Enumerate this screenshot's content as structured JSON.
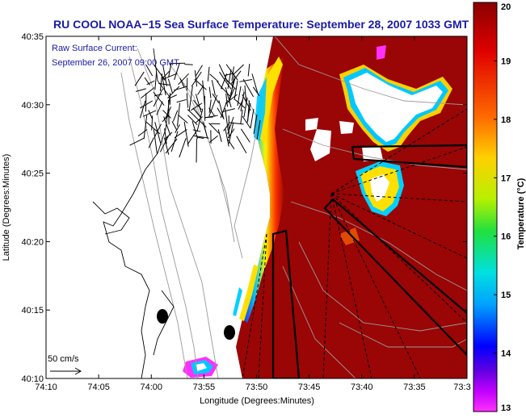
{
  "chart_data": {
    "type": "heatmap",
    "title": "RU COOL  NOAA−15  Sea Surface Temperature:  September 28, 2007 1033 GMT",
    "xlabel": "Longitude (Degrees:Minutes)",
    "ylabel": "Latitude (Degrees:Minutes)",
    "x_ticks": [
      "74:10",
      "74:05",
      "74:00",
      "73:55",
      "73:50",
      "73:45",
      "73:40",
      "73:35",
      "73:3"
    ],
    "y_ticks": [
      "40:10",
      "40:15",
      "40:20",
      "40:25",
      "40:30",
      "40:35"
    ],
    "xlim_minutes_west": [
      10,
      33
    ],
    "ylim_minutes_north": [
      10,
      35
    ],
    "colorbar": {
      "label": "Temperature (°C)",
      "ticks": [
        "20",
        "19",
        "18",
        "17",
        "16",
        "15",
        "14",
        "13"
      ],
      "range": [
        13,
        20
      ]
    },
    "overlay_text": {
      "line1": "Raw Surface Current:",
      "line2": "September 26, 2007 09:00 GMT"
    },
    "scale_label": "50 cm/s",
    "colors": {
      "title": "#1a1aa6",
      "warm_water": "#9a0505",
      "land": "#ffffff"
    }
  }
}
